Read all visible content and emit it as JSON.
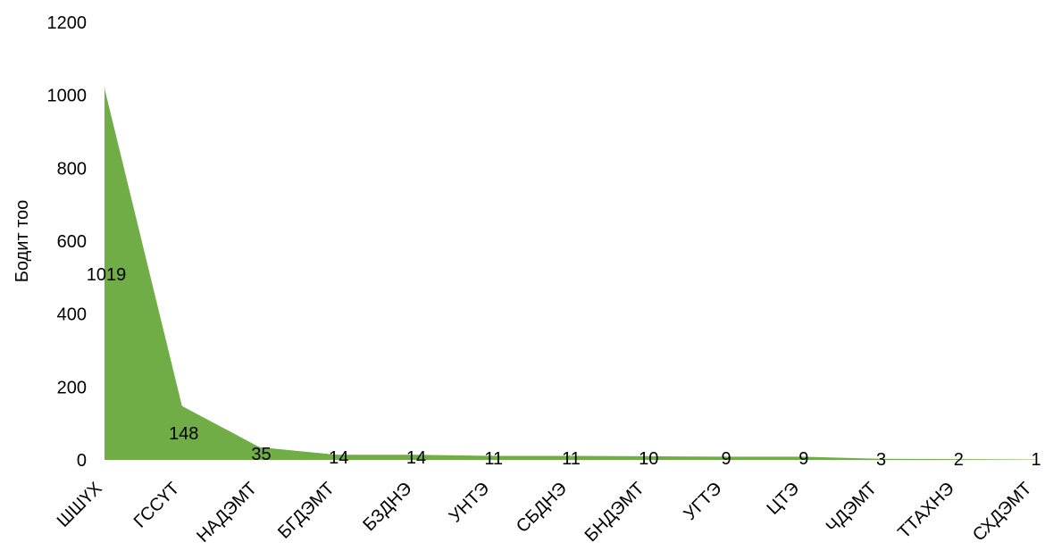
{
  "chart_data": {
    "type": "area",
    "categories": [
      "ШШҮХ",
      "ГССҮТ",
      "НАДЭМТ",
      "БГДЭМТ",
      "БЗДНЭ",
      "УНТЭ",
      "СБДНЭ",
      "БНДЭМТ",
      "УГТЭ",
      "ЦТЭ",
      "ЧДЭМТ",
      "ТТАХНЭ",
      "СХДЭМТ"
    ],
    "values": [
      1019,
      148,
      35,
      14,
      14,
      11,
      11,
      10,
      9,
      9,
      3,
      2,
      1
    ],
    "data_labels": [
      "1019",
      "148",
      "35",
      "14",
      "14",
      "11",
      "11",
      "10",
      "9",
      "9",
      "3",
      "2",
      "1"
    ],
    "title": "",
    "xlabel": "",
    "ylabel": "Бодит тоо",
    "ylim": [
      0,
      1200
    ],
    "y_ticks": [
      "0",
      "200",
      "400",
      "600",
      "800",
      "1000",
      "1200"
    ],
    "grid": false,
    "legend": "none",
    "colors": {
      "area_fill": "#70ad47",
      "text": "#000000"
    }
  }
}
